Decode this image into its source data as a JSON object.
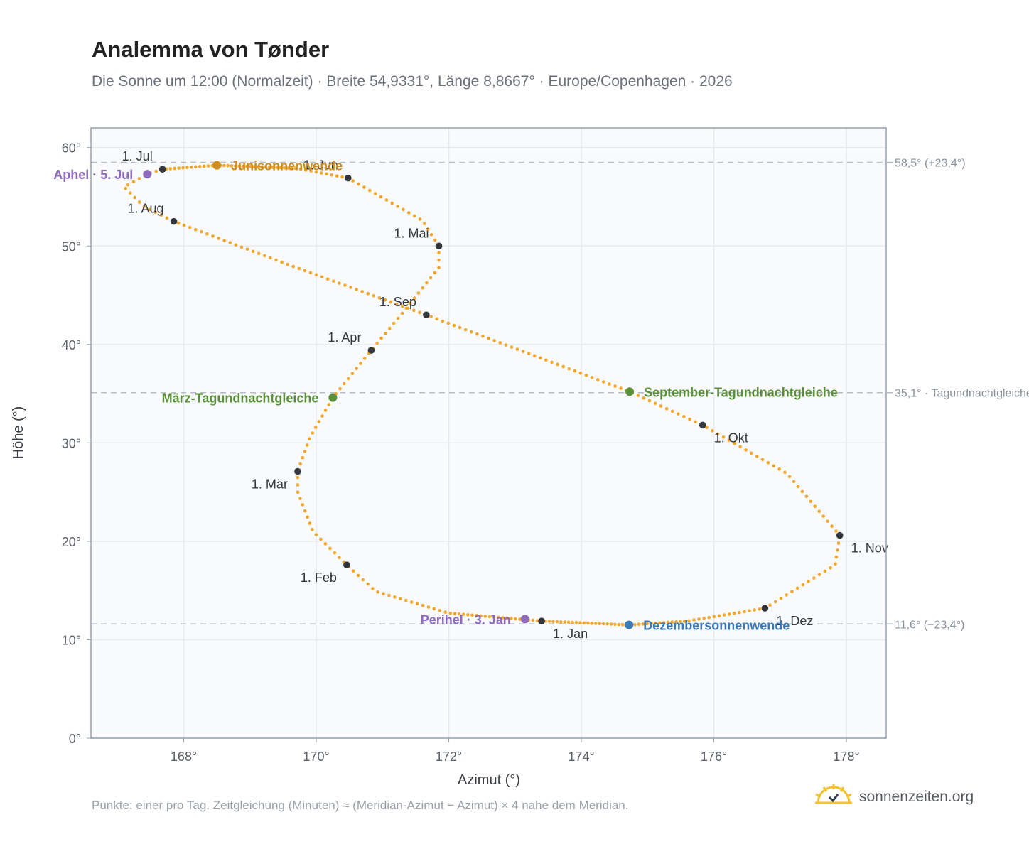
{
  "header": {
    "title": "Analemma von Tønder",
    "subtitle": "Die Sonne um 12:00 (Normalzeit) · Breite 54,9331°, Länge 8,8667° · Europe/Copenhagen · 2026"
  },
  "footer": {
    "note": "Punkte: einer pro Tag. Zeitgleichung (Minuten) ≈ (Meridian-Azimut − Azimut) × 4 nahe dem Meridian.",
    "brand": "sonnenzeiten.org"
  },
  "colors": {
    "curve": "#f2a72c",
    "month_marker": "#33373d",
    "solstice_june": "#d08c1a",
    "equinox": "#5a8f3a",
    "solstice_december": "#3a78b8",
    "perihelion_aphelion": "#8e6bbd",
    "reference_line": "#b6bec8",
    "grid": "#e6e9ee",
    "plot_background": "#f8fafc"
  },
  "chart_data": {
    "type": "scatter",
    "xlabel": "Azimut (°)",
    "ylabel": "Höhe (°)",
    "xlim": [
      166.6,
      178.6
    ],
    "ylim": [
      0,
      62
    ],
    "xticks": [
      168,
      170,
      172,
      174,
      176,
      178
    ],
    "xtick_labels": [
      "168°",
      "170°",
      "172°",
      "174°",
      "176°",
      "178°"
    ],
    "yticks": [
      0,
      10,
      20,
      30,
      40,
      50,
      60
    ],
    "ytick_labels": [
      "0°",
      "10°",
      "20°",
      "30°",
      "40°",
      "50°",
      "60°"
    ],
    "grid": true,
    "reference_lines": [
      {
        "y": 58.5,
        "label": "58,5° (+23,4°)"
      },
      {
        "y": 35.1,
        "label": "35,1° · Tagundnachtgleiche"
      },
      {
        "y": 11.6,
        "label": "11,6° (−23,4°)"
      }
    ],
    "path_keypoints": [
      [
        173.4,
        11.9
      ],
      [
        172.0,
        12.7
      ],
      [
        170.9,
        14.9
      ],
      [
        170.46,
        17.6
      ],
      [
        169.95,
        21.0
      ],
      [
        169.72,
        25.0
      ],
      [
        169.72,
        27.1
      ],
      [
        169.9,
        30.5
      ],
      [
        170.25,
        34.6
      ],
      [
        170.83,
        39.4
      ],
      [
        171.35,
        43.6
      ],
      [
        171.85,
        47.8
      ],
      [
        171.85,
        50.0
      ],
      [
        171.6,
        52.6
      ],
      [
        170.48,
        56.9
      ],
      [
        169.7,
        57.9
      ],
      [
        168.5,
        58.2
      ],
      [
        167.68,
        57.8
      ],
      [
        167.45,
        57.3
      ],
      [
        167.1,
        56.0
      ],
      [
        167.4,
        54.0
      ],
      [
        167.85,
        52.5
      ],
      [
        169.5,
        48.3
      ],
      [
        171.66,
        43.0
      ],
      [
        174.73,
        35.2
      ],
      [
        175.83,
        31.8
      ],
      [
        177.1,
        26.9
      ],
      [
        177.9,
        20.6
      ],
      [
        177.83,
        17.6
      ],
      [
        176.77,
        13.2
      ],
      [
        175.6,
        11.9
      ],
      [
        174.72,
        11.5
      ],
      [
        173.4,
        11.9
      ]
    ],
    "daily_points": 365,
    "month_markers": [
      {
        "label": "1. Jan",
        "x": 173.4,
        "y": 11.9,
        "pos": "below-right"
      },
      {
        "label": "1. Feb",
        "x": 170.46,
        "y": 17.6,
        "pos": "below-left"
      },
      {
        "label": "1. Mär",
        "x": 169.72,
        "y": 27.1,
        "pos": "below-left"
      },
      {
        "label": "1. Apr",
        "x": 170.83,
        "y": 39.4,
        "pos": "above-left"
      },
      {
        "label": "1. Mai",
        "x": 171.85,
        "y": 50.0,
        "pos": "above-left"
      },
      {
        "label": "1. Jun",
        "x": 170.48,
        "y": 56.9,
        "pos": "above-left"
      },
      {
        "label": "1. Jul",
        "x": 167.68,
        "y": 57.8,
        "pos": "above-left"
      },
      {
        "label": "1. Aug",
        "x": 167.85,
        "y": 52.5,
        "pos": "above-left"
      },
      {
        "label": "1. Sep",
        "x": 171.66,
        "y": 43.0,
        "pos": "above-left"
      },
      {
        "label": "1. Okt",
        "x": 175.83,
        "y": 31.8,
        "pos": "below-right"
      },
      {
        "label": "1. Nov",
        "x": 177.9,
        "y": 20.6,
        "pos": "below-right"
      },
      {
        "label": "1. Dez",
        "x": 176.77,
        "y": 13.2,
        "pos": "below-right"
      }
    ],
    "events": [
      {
        "label": "Junisonnenwende",
        "x": 168.5,
        "y": 58.2,
        "color_key": "solstice_june",
        "pos": "right"
      },
      {
        "label": "Aphel · 5. Jul",
        "x": 167.45,
        "y": 57.3,
        "color_key": "perihelion_aphelion",
        "pos": "left"
      },
      {
        "label": "März-Tagundnachtgleiche",
        "x": 170.25,
        "y": 34.6,
        "color_key": "equinox",
        "pos": "left"
      },
      {
        "label": "September-Tagundnachtgleiche",
        "x": 174.73,
        "y": 35.2,
        "color_key": "equinox",
        "pos": "right"
      },
      {
        "label": "Perihel · 3. Jan",
        "x": 173.15,
        "y": 12.1,
        "color_key": "perihelion_aphelion",
        "pos": "left"
      },
      {
        "label": "Dezembersonnenwende",
        "x": 174.72,
        "y": 11.5,
        "color_key": "solstice_december",
        "pos": "right"
      }
    ]
  }
}
